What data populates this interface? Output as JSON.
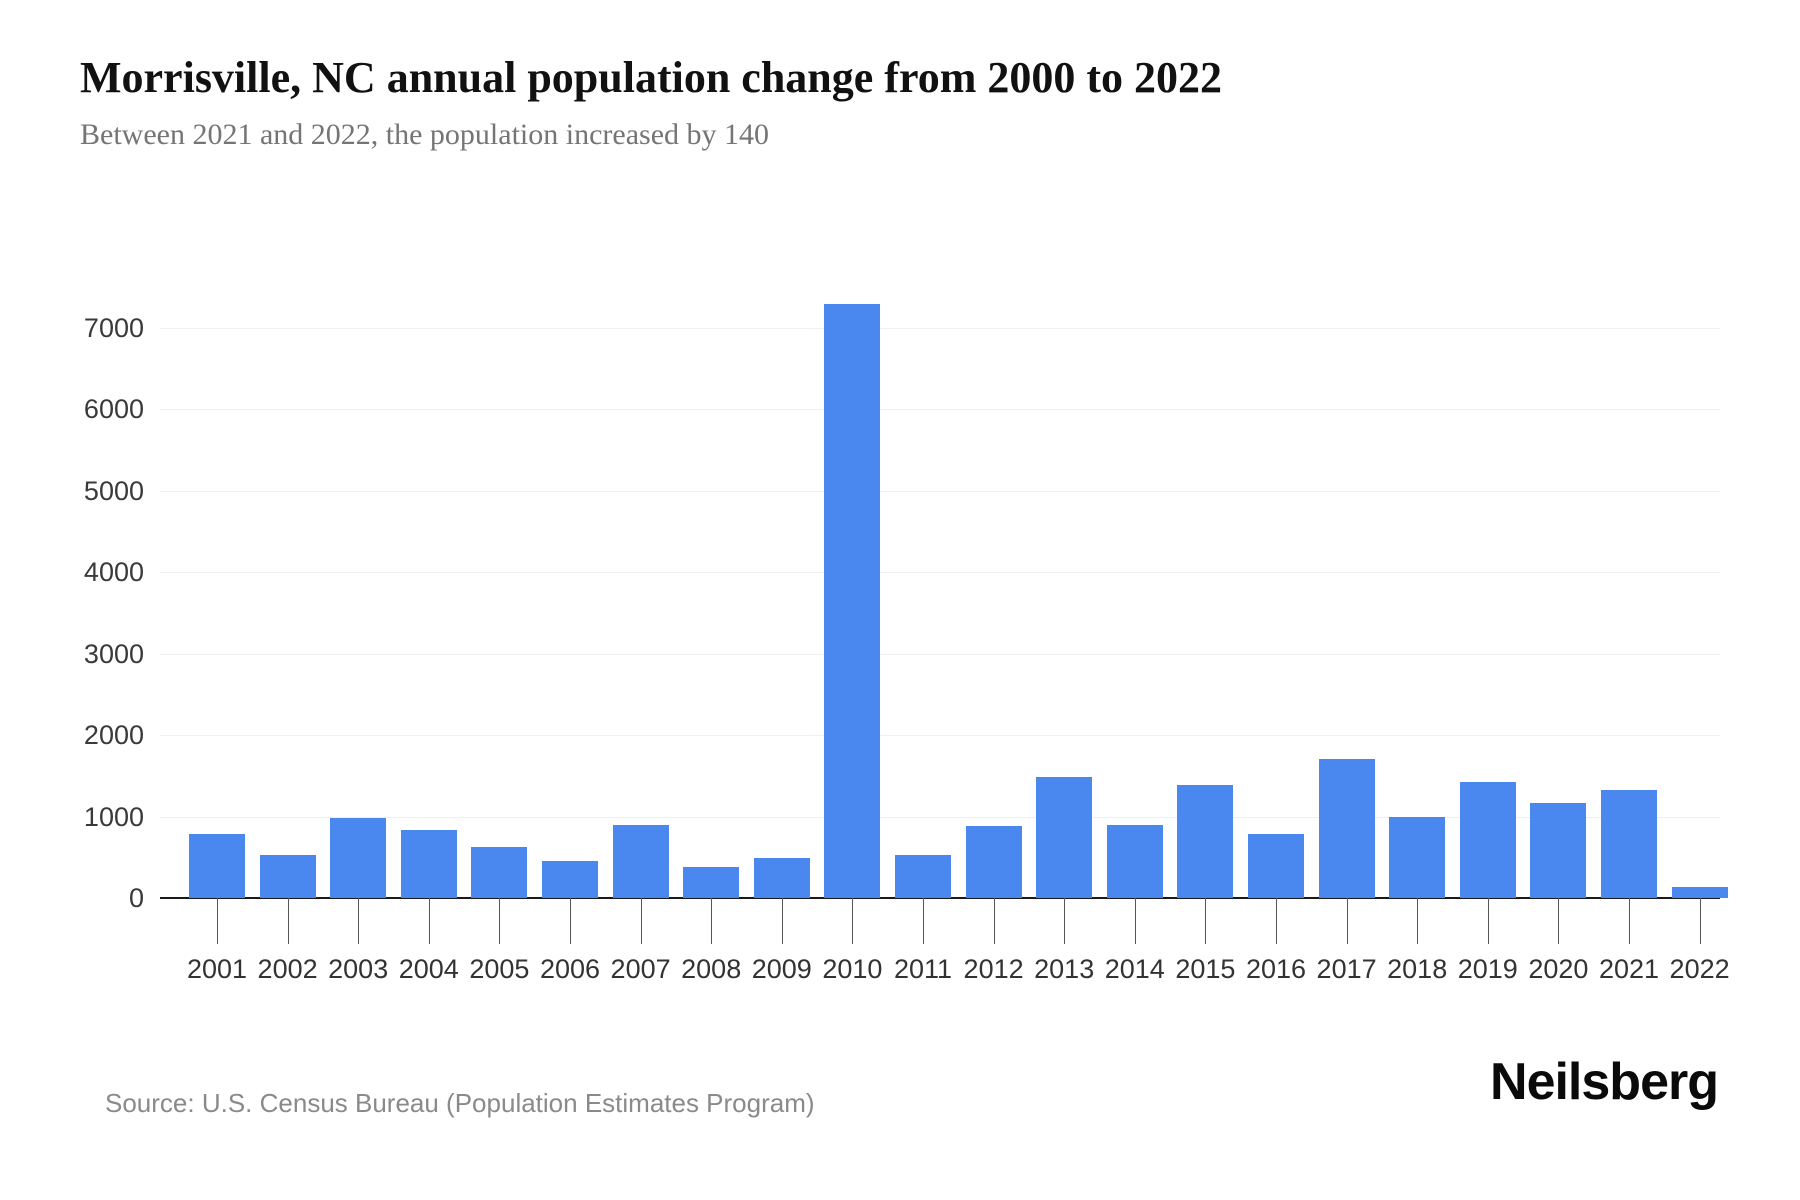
{
  "page": {
    "title": "Morrisville, NC annual population change from 2000 to 2022",
    "subtitle": "Between 2021 and 2022, the population increased by 140",
    "source": "Source: U.S. Census Bureau (Population Estimates Program)",
    "logo": "Neilsberg"
  },
  "colors": {
    "bar": "#4a87ee",
    "title_text": "#111111",
    "subtitle_text": "#757575",
    "grid": "#efefef",
    "axis": "#1a1a1a",
    "tick_label": "#3a3a3a",
    "year_label": "#333333",
    "source_text": "#8a8a8a",
    "logo_text": "#0a0a0a"
  },
  "chart_data": {
    "type": "bar",
    "title": "Morrisville, NC annual population change from 2000 to 2022",
    "subtitle": "Between 2021 and 2022, the population increased by 140",
    "xlabel": "",
    "ylabel": "",
    "categories": [
      "2001",
      "2002",
      "2003",
      "2004",
      "2005",
      "2006",
      "2007",
      "2008",
      "2009",
      "2010",
      "2011",
      "2012",
      "2013",
      "2014",
      "2015",
      "2016",
      "2017",
      "2018",
      "2019",
      "2020",
      "2021",
      "2022"
    ],
    "values": [
      780,
      530,
      985,
      840,
      620,
      450,
      895,
      380,
      485,
      7290,
      530,
      880,
      1480,
      890,
      1385,
      790,
      1710,
      990,
      1420,
      1160,
      1320,
      140
    ],
    "ylim": [
      0,
      7500
    ],
    "yticks": [
      0,
      1000,
      2000,
      3000,
      4000,
      5000,
      6000,
      7000
    ],
    "grid": "horizontal-light",
    "legend": "none",
    "bar_color": "#4a87ee"
  }
}
